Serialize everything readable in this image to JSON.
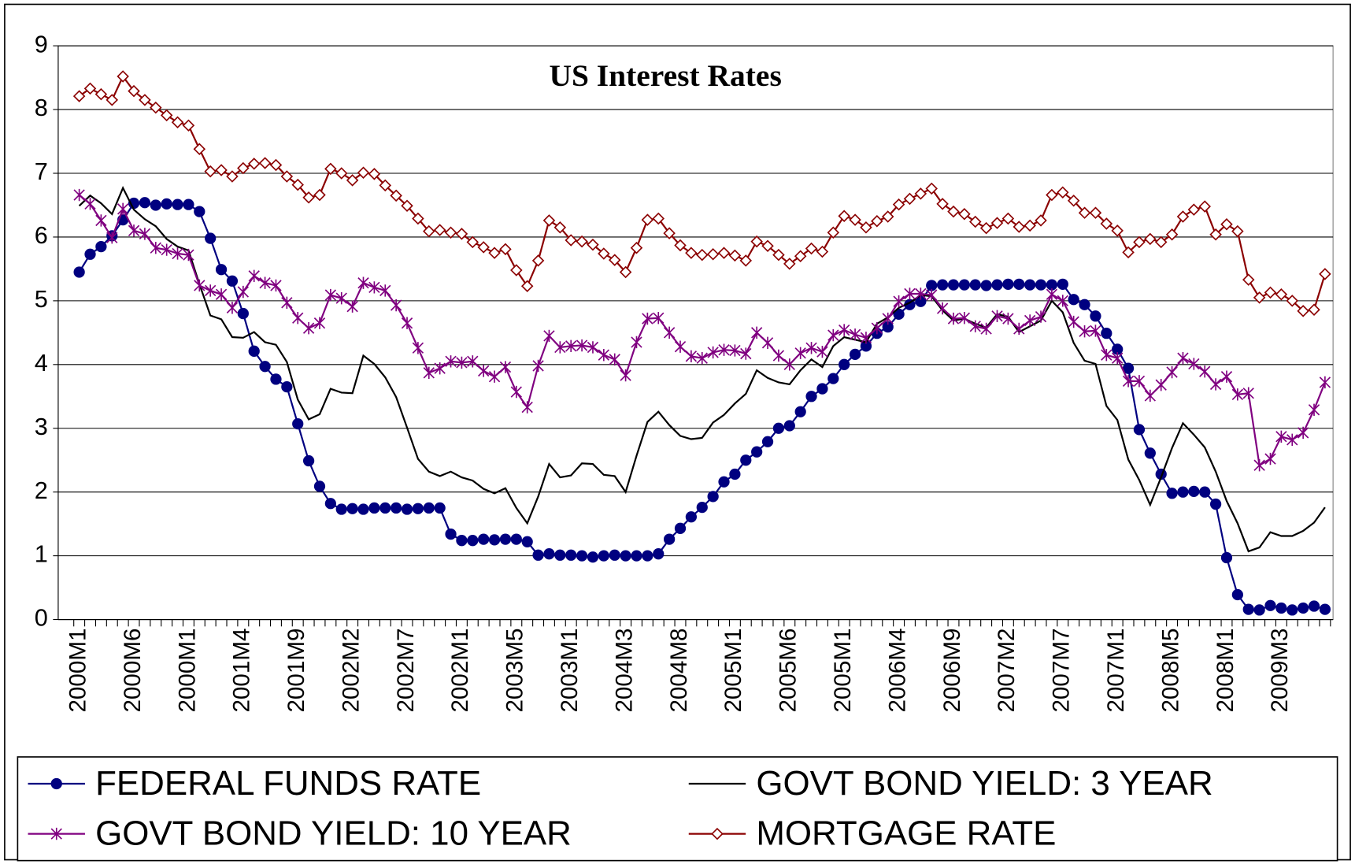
{
  "chart_data": {
    "type": "line",
    "title": "US Interest Rates",
    "categories": [
      "2000M1",
      null,
      null,
      null,
      null,
      "2000M6",
      null,
      null,
      null,
      null,
      "2000M1",
      null,
      null,
      null,
      null,
      "2001M4",
      null,
      null,
      null,
      null,
      "2001M9",
      null,
      null,
      null,
      null,
      "2002M2",
      null,
      null,
      null,
      null,
      "2002M7",
      null,
      null,
      null,
      null,
      "2002M1",
      null,
      null,
      null,
      null,
      "2003M5",
      null,
      null,
      null,
      null,
      "2003M1",
      null,
      null,
      null,
      null,
      "2004M3",
      null,
      null,
      null,
      null,
      "2004M8",
      null,
      null,
      null,
      null,
      "2005M1",
      null,
      null,
      null,
      null,
      "2005M6",
      null,
      null,
      null,
      null,
      "2005M1",
      null,
      null,
      null,
      null,
      "2006M4",
      null,
      null,
      null,
      null,
      "2006M9",
      null,
      null,
      null,
      null,
      "2007M2",
      null,
      null,
      null,
      null,
      "2007M7",
      null,
      null,
      null,
      null,
      "2007M1",
      null,
      null,
      null,
      null,
      "2008M5",
      null,
      null,
      null,
      null,
      "2008M1",
      null,
      null,
      null,
      null,
      "2009M3",
      null,
      null,
      null,
      null
    ],
    "series": [
      {
        "name": "FEDERAL FUNDS RATE",
        "color": "#000080",
        "marker": "circle",
        "values": [
          5.45,
          5.73,
          5.85,
          6.02,
          6.27,
          6.53,
          6.54,
          6.5,
          6.52,
          6.51,
          6.51,
          6.4,
          5.98,
          5.49,
          5.31,
          4.8,
          4.21,
          3.97,
          3.77,
          3.65,
          3.07,
          2.49,
          2.09,
          1.82,
          1.73,
          1.74,
          1.73,
          1.75,
          1.75,
          1.75,
          1.73,
          1.74,
          1.75,
          1.75,
          1.34,
          1.24,
          1.24,
          1.26,
          1.25,
          1.26,
          1.26,
          1.22,
          1.01,
          1.03,
          1.01,
          1.01,
          1.0,
          0.98,
          1.0,
          1.01,
          1.0,
          1.0,
          1.0,
          1.03,
          1.26,
          1.43,
          1.61,
          1.76,
          1.93,
          2.16,
          2.28,
          2.5,
          2.63,
          2.79,
          3.0,
          3.04,
          3.26,
          3.5,
          3.62,
          3.78,
          4.0,
          4.16,
          4.29,
          4.49,
          4.59,
          4.79,
          4.94,
          4.99,
          5.24,
          5.25,
          5.25,
          5.25,
          5.25,
          5.24,
          5.25,
          5.26,
          5.26,
          5.25,
          5.25,
          5.25,
          5.26,
          5.02,
          4.94,
          4.76,
          4.49,
          4.24,
          3.94,
          2.98,
          2.61,
          2.28,
          1.98,
          2.0,
          2.01,
          2.0,
          1.81,
          0.97,
          0.39,
          0.16,
          0.15,
          0.22,
          0.18,
          0.15,
          0.18,
          0.21,
          0.16
        ]
      },
      {
        "name": "GOVT BOND YIELD: 3 YEAR",
        "color": "#000000",
        "marker": "none",
        "values": [
          6.49,
          6.65,
          6.53,
          6.36,
          6.77,
          6.43,
          6.28,
          6.17,
          5.97,
          5.85,
          5.79,
          5.26,
          4.77,
          4.71,
          4.43,
          4.42,
          4.51,
          4.35,
          4.31,
          4.04,
          3.45,
          3.14,
          3.22,
          3.62,
          3.56,
          3.55,
          4.14,
          4.01,
          3.8,
          3.49,
          3.01,
          2.52,
          2.32,
          2.25,
          2.32,
          2.23,
          2.18,
          2.05,
          1.98,
          2.06,
          1.75,
          1.51,
          1.93,
          2.44,
          2.23,
          2.26,
          2.45,
          2.44,
          2.27,
          2.25,
          2.0,
          2.57,
          3.1,
          3.26,
          3.05,
          2.88,
          2.83,
          2.85,
          3.09,
          3.21,
          3.39,
          3.54,
          3.91,
          3.79,
          3.72,
          3.69,
          3.91,
          4.08,
          3.96,
          4.29,
          4.43,
          4.39,
          4.35,
          4.64,
          4.74,
          4.89,
          4.97,
          5.09,
          5.07,
          4.85,
          4.69,
          4.72,
          4.64,
          4.58,
          4.79,
          4.75,
          4.51,
          4.6,
          4.69,
          5.0,
          4.82,
          4.34,
          4.06,
          4.01,
          3.35,
          3.13,
          2.51,
          2.19,
          1.8,
          2.23,
          2.69,
          3.08,
          2.9,
          2.7,
          2.32,
          1.86,
          1.51,
          1.07,
          1.13,
          1.37,
          1.31,
          1.31,
          1.39,
          1.52,
          1.76
        ]
      },
      {
        "name": "GOVT BOND YIELD: 10 YEAR",
        "color": "#800080",
        "marker": "star",
        "values": [
          6.66,
          6.52,
          6.26,
          5.99,
          6.44,
          6.1,
          6.05,
          5.83,
          5.8,
          5.74,
          5.72,
          5.24,
          5.16,
          5.1,
          4.89,
          5.14,
          5.39,
          5.28,
          5.24,
          4.97,
          4.73,
          4.57,
          4.65,
          5.09,
          5.04,
          4.91,
          5.28,
          5.21,
          5.16,
          4.93,
          4.65,
          4.26,
          3.87,
          3.94,
          4.05,
          4.03,
          4.05,
          3.9,
          3.81,
          3.96,
          3.57,
          3.33,
          3.98,
          4.45,
          4.27,
          4.29,
          4.3,
          4.27,
          4.15,
          4.08,
          3.83,
          4.35,
          4.72,
          4.73,
          4.5,
          4.28,
          4.13,
          4.1,
          4.19,
          4.23,
          4.22,
          4.17,
          4.5,
          4.34,
          4.14,
          4.0,
          4.18,
          4.26,
          4.2,
          4.46,
          4.54,
          4.47,
          4.42,
          4.57,
          4.72,
          4.99,
          5.11,
          5.11,
          5.09,
          4.88,
          4.72,
          4.73,
          4.6,
          4.56,
          4.76,
          4.72,
          4.56,
          4.69,
          4.75,
          5.1,
          5.0,
          4.67,
          4.52,
          4.53,
          4.15,
          4.1,
          3.74,
          3.74,
          3.51,
          3.68,
          3.88,
          4.1,
          4.01,
          3.89,
          3.69,
          3.81,
          3.53,
          3.55,
          2.42,
          2.52,
          2.87,
          2.82,
          2.93,
          3.29,
          3.72
        ]
      },
      {
        "name": "MORTGAGE RATE",
        "color": "#8B0000",
        "marker": "diamond",
        "values": [
          8.21,
          8.33,
          8.24,
          8.15,
          8.52,
          8.29,
          8.15,
          8.03,
          7.91,
          7.8,
          7.75,
          7.38,
          7.03,
          7.05,
          6.95,
          7.08,
          7.15,
          7.16,
          7.13,
          6.95,
          6.82,
          6.62,
          6.66,
          7.07,
          7.0,
          6.89,
          7.01,
          6.99,
          6.81,
          6.65,
          6.49,
          6.29,
          6.09,
          6.11,
          6.07,
          6.05,
          5.92,
          5.84,
          5.75,
          5.81,
          5.48,
          5.23,
          5.63,
          6.26,
          6.15,
          5.95,
          5.93,
          5.88,
          5.74,
          5.64,
          5.45,
          5.83,
          6.27,
          6.29,
          6.06,
          5.87,
          5.75,
          5.72,
          5.73,
          5.75,
          5.71,
          5.63,
          5.93,
          5.86,
          5.72,
          5.58,
          5.7,
          5.82,
          5.77,
          6.07,
          6.33,
          6.27,
          6.15,
          6.25,
          6.32,
          6.51,
          6.6,
          6.68,
          6.76,
          6.52,
          6.4,
          6.36,
          6.24,
          6.14,
          6.22,
          6.29,
          6.16,
          6.18,
          6.26,
          6.66,
          6.7,
          6.57,
          6.38,
          6.38,
          6.21,
          6.1,
          5.76,
          5.92,
          5.97,
          5.92,
          6.04,
          6.32,
          6.43,
          6.48,
          6.04,
          6.2,
          6.09,
          5.33,
          5.05,
          5.13,
          5.1,
          5.0,
          4.84,
          4.86,
          5.42
        ]
      }
    ],
    "ylim": [
      0,
      9
    ],
    "yticks": [
      0,
      1,
      2,
      3,
      4,
      5,
      6,
      7,
      8,
      9
    ],
    "grid": true,
    "legend": "bottom"
  }
}
